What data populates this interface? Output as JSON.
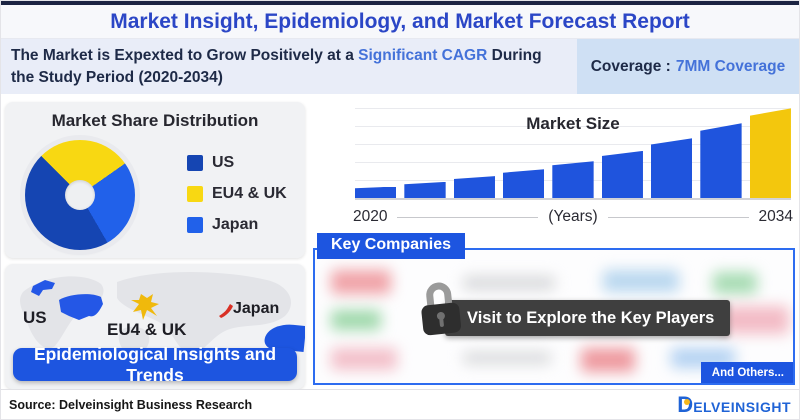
{
  "header": {
    "title": "Market Insight, Epidemiology, and Market Forecast Report",
    "subtitle_pre": "The Market is Expexted to Grow Positively at a ",
    "subtitle_highlight": "Significant CAGR",
    "subtitle_post": " During the Study Period (2020-2034)",
    "coverage_label": "Coverage :",
    "coverage_value": "7MM Coverage"
  },
  "market_share": {
    "title": "Market Share Distribution",
    "legend": [
      {
        "label": "US",
        "color": "#1545b2"
      },
      {
        "label": "EU4 & UK",
        "color": "#f8d812"
      },
      {
        "label": "Japan",
        "color": "#2161ea"
      }
    ]
  },
  "chart_data": [
    {
      "type": "pie",
      "title": "Market Share Distribution",
      "donut": true,
      "labels": [
        "US",
        "EU4 & UK",
        "Japan"
      ],
      "values_pct": [
        46,
        28,
        26
      ],
      "colors": [
        "#1545b2",
        "#f8d812",
        "#2161ea"
      ],
      "start_angle_deg": -45,
      "segments": [
        {
          "label": "EU4 & UK",
          "color": "#f8d812",
          "deg": 100
        },
        {
          "label": "Japan",
          "color": "#2161ea",
          "deg": 95
        },
        {
          "label": "US",
          "color": "#1545b2",
          "deg": 165
        }
      ],
      "legend_position": "right"
    },
    {
      "type": "bar",
      "title": "Market Size",
      "x_start_label": "2020",
      "x_axis_label": "(Years)",
      "x_end_label": "2034",
      "xlabel": "(Years)",
      "ylabel": "",
      "values": [
        10,
        14,
        19,
        25,
        32,
        41,
        52,
        65,
        78
      ],
      "ymax": 80,
      "bar_color": "#1f54dd",
      "highlight_last_color": "#f3c70d",
      "grid": true,
      "note": "values are relative units (no y-axis labels shown); last bar (2034) highlighted yellow"
    }
  ],
  "map": {
    "labels": {
      "us": "US",
      "eu": "EU4 & UK",
      "japan": "Japan"
    },
    "region_colors": {
      "us": "#2457e6",
      "eu": "#f0b90c",
      "japan": "#d93025"
    },
    "button_label": "Epidemiological Insights and Trends"
  },
  "companies": {
    "header": "Key Companies",
    "tooltip": "Visit to Explore the Key Players",
    "and_others": "And Others...",
    "blur_colors": [
      "#f0a3a8",
      "#d8d9db",
      "#b9d7ef",
      "#a8dcb4",
      "#9fd8ab",
      "#d8d9db",
      "#f3bcc6",
      "#f3c0ca",
      "#d8d9db",
      "#ee9aa0",
      "#b4d2f2"
    ]
  },
  "footer": {
    "source": "Source: Delveinsight Business Research",
    "logo_first": "D",
    "logo_rest": "ELVEINSIGHT"
  }
}
